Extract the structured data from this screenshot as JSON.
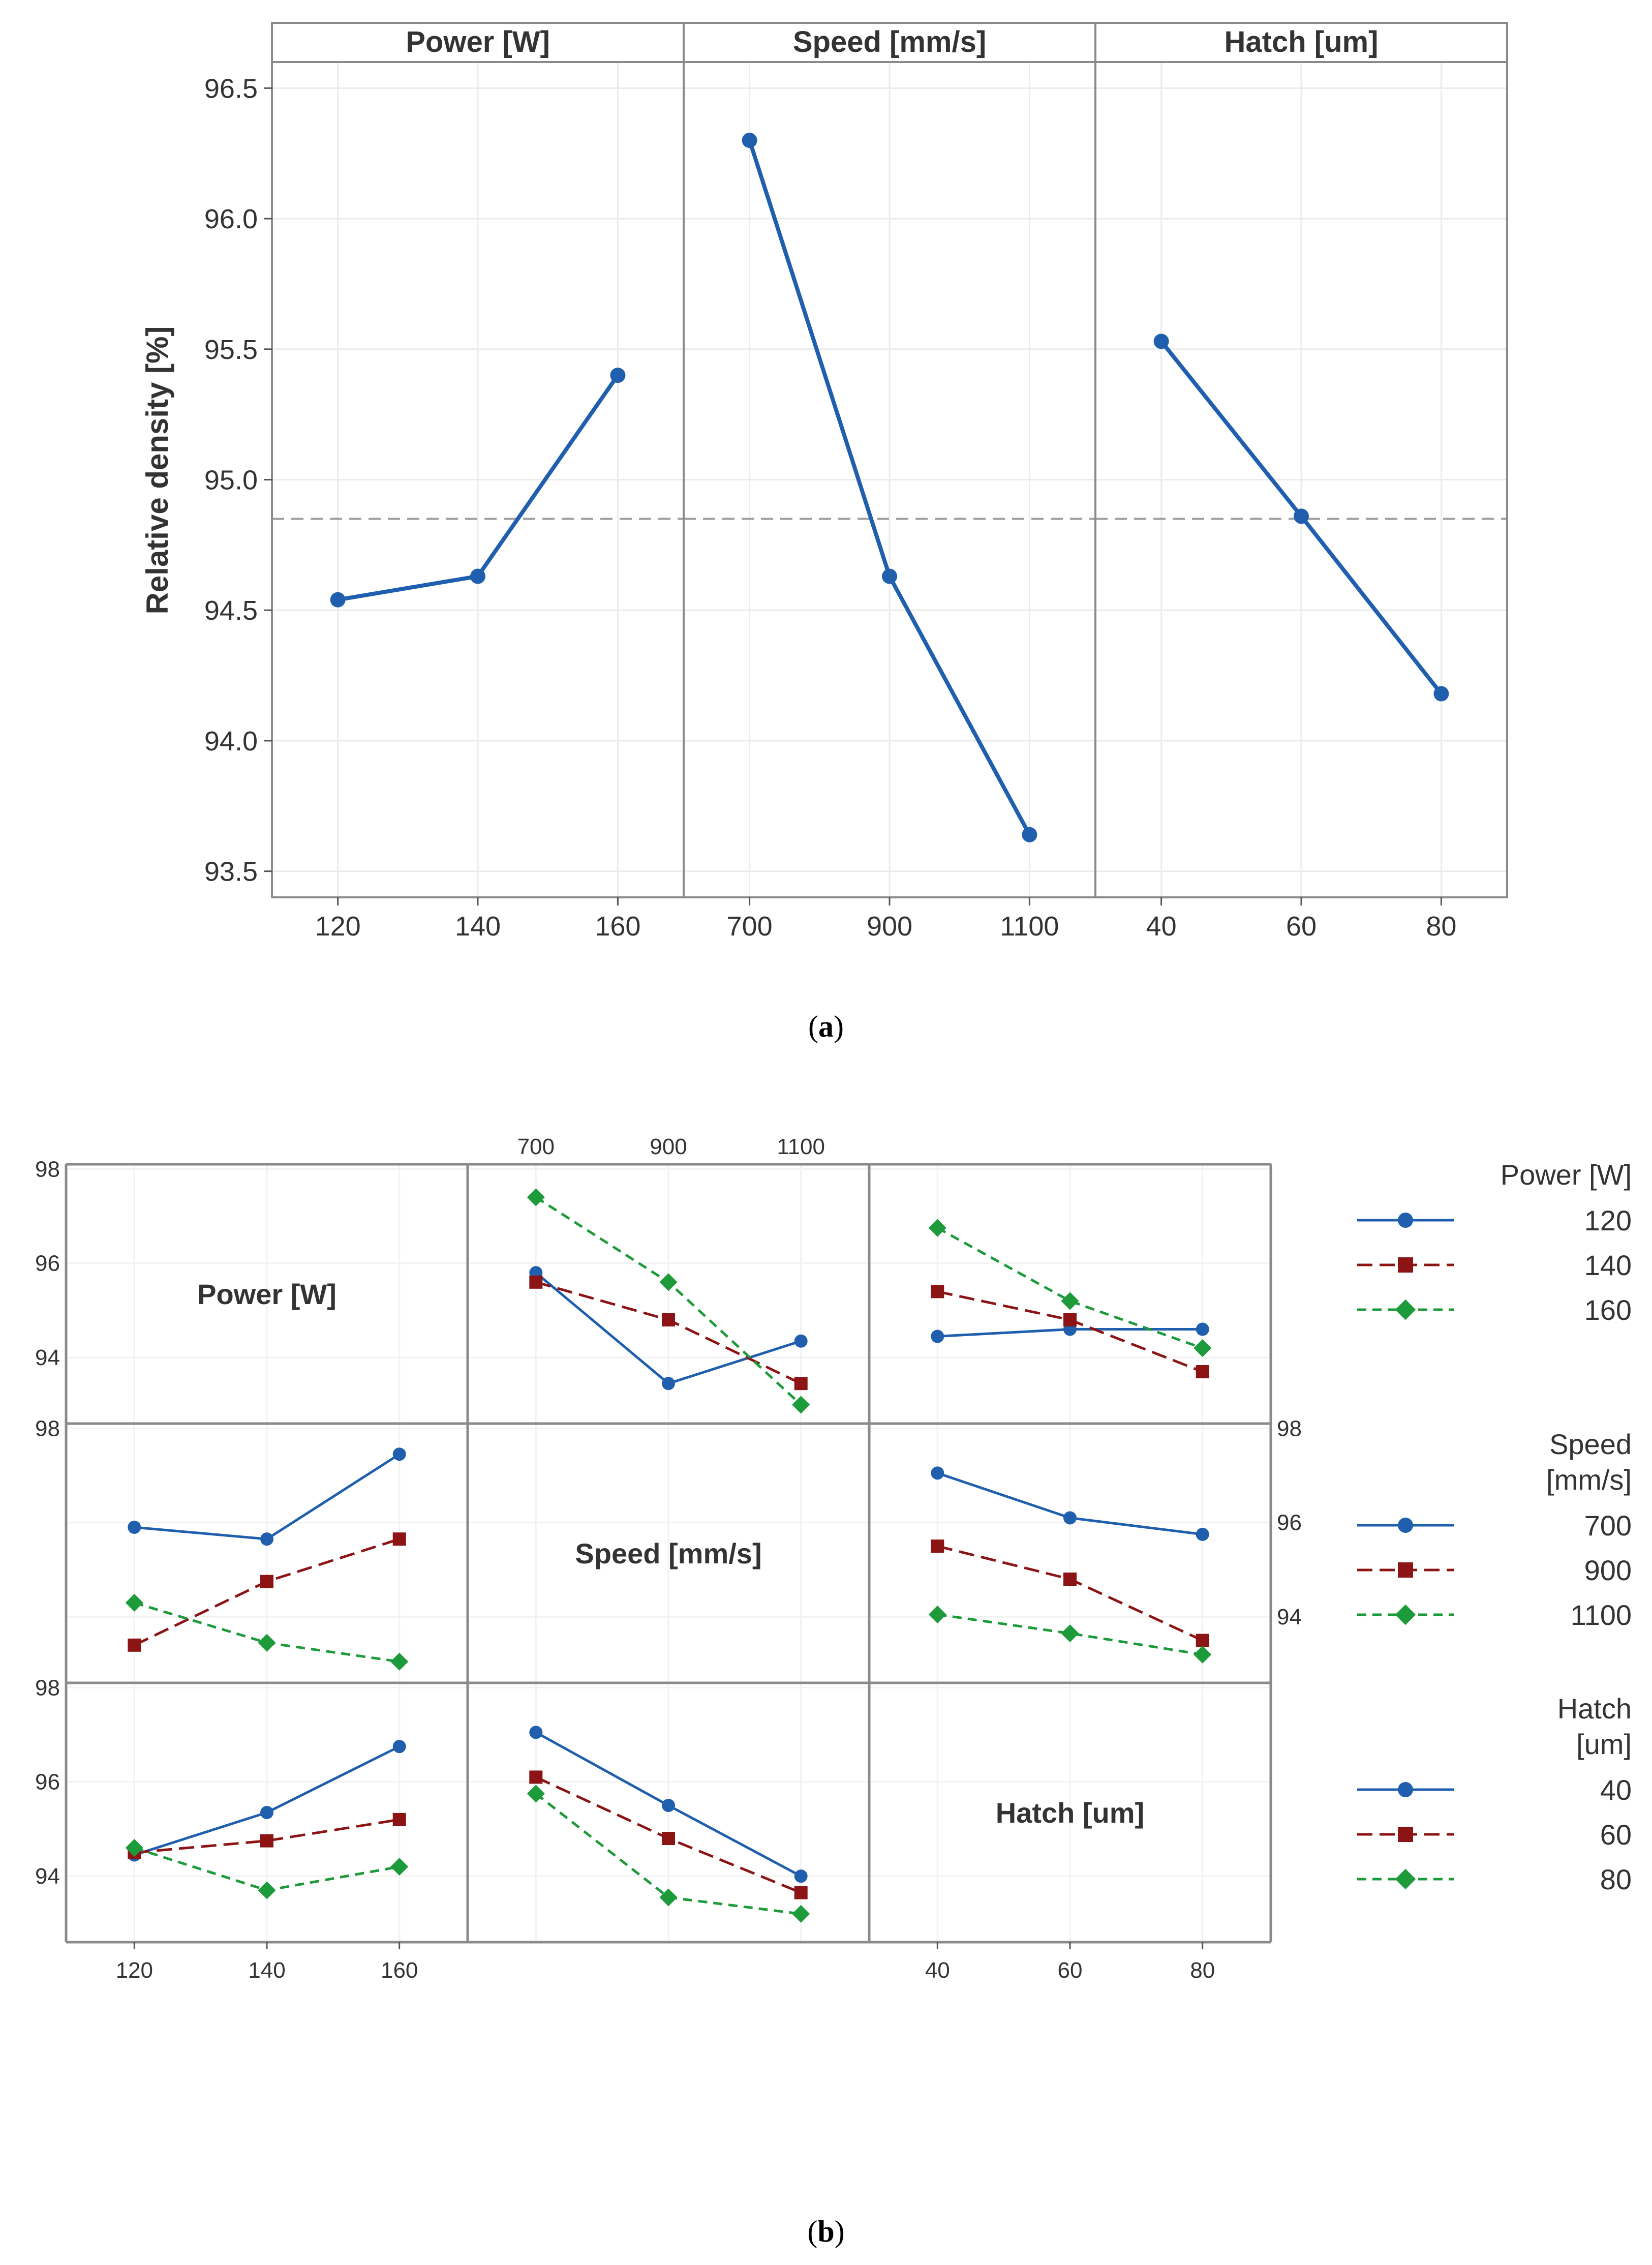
{
  "figure_a": {
    "caption_open": "(",
    "caption_letter": "a",
    "caption_close": ")"
  },
  "figure_b": {
    "caption_open": "(",
    "caption_letter": "b",
    "caption_close": ")"
  },
  "colors": {
    "blue": "#1f5fad",
    "red": "#8c1414",
    "green": "#1d9a3a",
    "frame": "#8a8a8a",
    "grid": "#ebebeb",
    "mean_line": "#9e9e9e",
    "text": "#333333"
  },
  "chart_data": [
    {
      "id": "main-effects",
      "type": "line",
      "ylabel": "Relative density [%]",
      "ylim": [
        93.4,
        96.6
      ],
      "yticks": [
        "93.5",
        "94.0",
        "94.5",
        "95.0",
        "95.5",
        "96.0",
        "96.5"
      ],
      "grand_mean": 94.85,
      "grid": true,
      "panels": [
        {
          "title": "Power [W]",
          "categories": [
            "120",
            "140",
            "160"
          ],
          "values": [
            94.54,
            94.63,
            95.4
          ]
        },
        {
          "title": "Speed [mm/s]",
          "categories": [
            "700",
            "900",
            "1100"
          ],
          "values": [
            96.3,
            94.63,
            93.64
          ]
        },
        {
          "title": "Hatch  [um]",
          "categories": [
            "40",
            "60",
            "80"
          ],
          "values": [
            95.53,
            94.86,
            94.18
          ]
        }
      ]
    },
    {
      "id": "interaction",
      "type": "line",
      "ylim": [
        92.6,
        98.1
      ],
      "tick_values": [
        "94",
        "96",
        "98"
      ],
      "factors": [
        "Power [W]",
        "Speed [mm/s]",
        "Hatch  [um]"
      ],
      "levels": [
        [
          "120",
          "140",
          "160"
        ],
        [
          "700",
          "900",
          "1100"
        ],
        [
          "40",
          "60",
          "80"
        ]
      ],
      "cells": [
        {
          "row": 0,
          "col": 1,
          "series": [
            {
              "name": "120",
              "values": [
                95.8,
                93.45,
                94.35
              ]
            },
            {
              "name": "140",
              "values": [
                95.6,
                94.8,
                93.45
              ]
            },
            {
              "name": "160",
              "values": [
                97.4,
                95.6,
                93.0
              ]
            }
          ]
        },
        {
          "row": 0,
          "col": 2,
          "series": [
            {
              "name": "120",
              "values": [
                94.45,
                94.6,
                94.6
              ]
            },
            {
              "name": "140",
              "values": [
                95.4,
                94.8,
                93.7
              ]
            },
            {
              "name": "160",
              "values": [
                96.75,
                95.2,
                94.2
              ]
            }
          ]
        },
        {
          "row": 1,
          "col": 0,
          "series": [
            {
              "name": "700",
              "values": [
                95.9,
                95.65,
                97.45
              ]
            },
            {
              "name": "900",
              "values": [
                93.4,
                94.75,
                95.65
              ]
            },
            {
              "name": "1100",
              "values": [
                94.3,
                93.45,
                93.05
              ]
            }
          ]
        },
        {
          "row": 1,
          "col": 2,
          "series": [
            {
              "name": "700",
              "values": [
                97.05,
                96.1,
                95.75
              ]
            },
            {
              "name": "900",
              "values": [
                95.5,
                94.8,
                93.5
              ]
            },
            {
              "name": "1100",
              "values": [
                94.05,
                93.65,
                93.2
              ]
            }
          ]
        },
        {
          "row": 2,
          "col": 0,
          "series": [
            {
              "name": "40",
              "values": [
                94.45,
                95.35,
                96.75
              ]
            },
            {
              "name": "60",
              "values": [
                94.5,
                94.75,
                95.2
              ]
            },
            {
              "name": "80",
              "values": [
                94.6,
                93.7,
                94.2
              ]
            }
          ]
        },
        {
          "row": 2,
          "col": 1,
          "series": [
            {
              "name": "40",
              "values": [
                97.05,
                95.5,
                94.0
              ]
            },
            {
              "name": "60",
              "values": [
                96.1,
                94.8,
                93.65
              ]
            },
            {
              "name": "80",
              "values": [
                95.75,
                93.55,
                93.2
              ]
            }
          ]
        }
      ],
      "legends": [
        {
          "title_lines": [
            "Power [W]"
          ],
          "items": [
            "120",
            "140",
            "160"
          ]
        },
        {
          "title_lines": [
            "Speed",
            "[mm/s]"
          ],
          "items": [
            "700",
            "900",
            "1100"
          ]
        },
        {
          "title_lines": [
            "Hatch",
            "[um]"
          ],
          "items": [
            "40",
            "60",
            "80"
          ]
        }
      ]
    }
  ]
}
